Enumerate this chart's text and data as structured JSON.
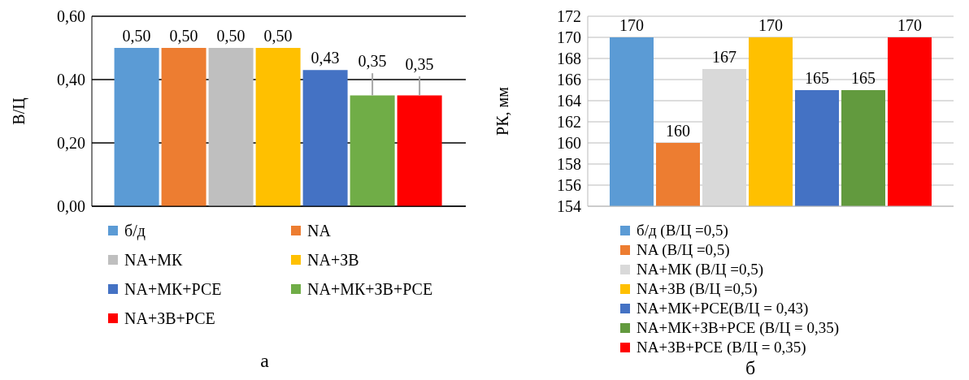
{
  "chart_data": [
    {
      "type": "bar",
      "ylabel": "В/Ц",
      "categories": [
        null
      ],
      "ylim": [
        0,
        0.6
      ],
      "yticks": [
        {
          "value": 0,
          "label": "0,00"
        },
        {
          "value": 0.2,
          "label": "0,20"
        },
        {
          "value": 0.4,
          "label": "0,40"
        },
        {
          "value": 0.6,
          "label": "0,60"
        }
      ],
      "grid": "y",
      "legend": "bottom",
      "annotations": [
        "а"
      ],
      "series": [
        {
          "name": "б/д",
          "color": "#5b9bd5",
          "values": [
            0.5
          ],
          "value_labels": [
            "0,50"
          ]
        },
        {
          "name": "NA",
          "color": "#ed7d31",
          "values": [
            0.5
          ],
          "value_labels": [
            "0,50"
          ]
        },
        {
          "name": "NA+МК",
          "color": "#bfbfbf",
          "values": [
            0.5
          ],
          "value_labels": [
            "0,50"
          ]
        },
        {
          "name": "NA+ЗВ",
          "color": "#ffc000",
          "values": [
            0.5
          ],
          "value_labels": [
            "0,50"
          ]
        },
        {
          "name": "NA+МК+РСЕ",
          "color": "#4472c4",
          "values": [
            0.43
          ],
          "value_labels": [
            "0,43"
          ]
        },
        {
          "name": "NA+МК+ЗВ+РСЕ",
          "color": "#70ad47",
          "values": [
            0.35
          ],
          "value_labels": [
            "0,35"
          ],
          "errors": [
            [
              0.35,
              0.42
            ]
          ]
        },
        {
          "name": "NA+ЗВ+РСЕ",
          "color": "#ff0000",
          "values": [
            0.35
          ],
          "value_labels": [
            "0,35"
          ],
          "errors": [
            [
              0.35,
              0.41
            ]
          ]
        }
      ]
    },
    {
      "type": "bar",
      "ylabel": "РК, мм",
      "categories": [
        null
      ],
      "ylim": [
        154,
        172
      ],
      "yticks": [
        154,
        156,
        158,
        160,
        162,
        164,
        166,
        168,
        170,
        172
      ],
      "grid": "y",
      "legend": "bottom",
      "data_labels": true,
      "annotations": [
        "б"
      ],
      "series": [
        {
          "name": "б/д (В/Ц =0,5)",
          "color": "#5b9bd5",
          "values": [
            170
          ]
        },
        {
          "name": "NA (В/Ц =0,5)",
          "color": "#ed7d31",
          "values": [
            160
          ]
        },
        {
          "name": "NA+МК (В/Ц =0,5)",
          "color": "#d9d9d9",
          "values": [
            167
          ]
        },
        {
          "name": "NA+ЗВ (В/Ц =0,5)",
          "color": "#ffc000",
          "values": [
            170
          ]
        },
        {
          "name": "NA+МК+РСЕ(В/Ц = 0,43)",
          "color": "#4472c4",
          "values": [
            165
          ]
        },
        {
          "name": "NA+МК+ЗВ+РСЕ (В/Ц = 0,35)",
          "color": "#629a3e",
          "values": [
            165
          ]
        },
        {
          "name": "NA+ЗВ+РСЕ (В/Ц = 0,35)",
          "color": "#ff0000",
          "values": [
            170
          ]
        }
      ]
    }
  ]
}
